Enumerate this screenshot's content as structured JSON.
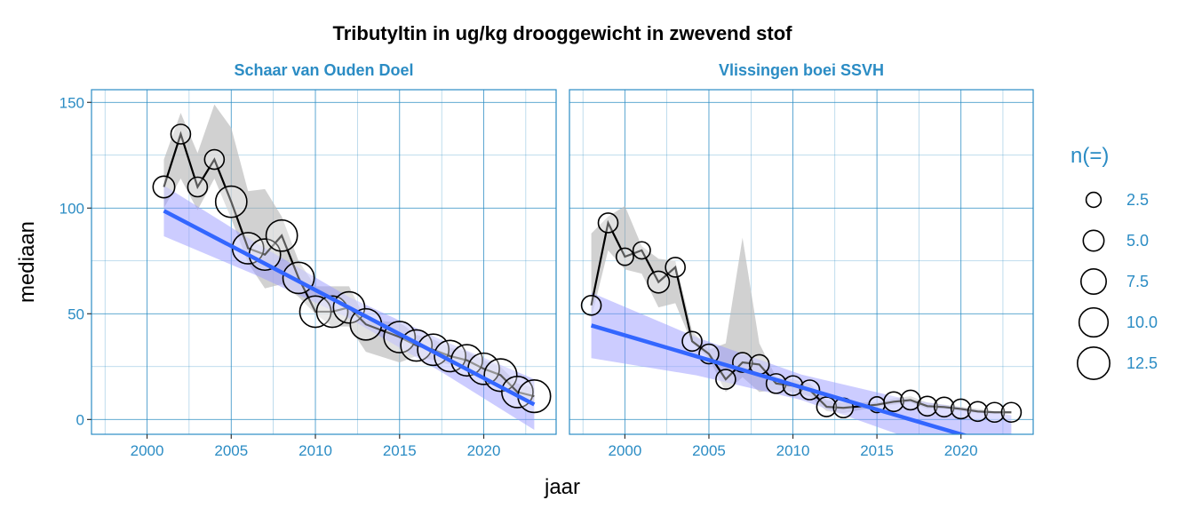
{
  "colors": {
    "title": "#b32d5e",
    "text": "#2b8cc4",
    "grid": "#2b8cc4",
    "trend": "#3366ff",
    "trend_ribbon": "#c8c8ff",
    "data_ribbon": "#bdbdbd"
  },
  "chart_data": {
    "type": "line",
    "title": "Tributyltin in ug/kg drooggewicht in zwevend stof",
    "xlabel": "jaar",
    "ylabel": "mediaan",
    "xlim": [
      1996.7,
      2024.3
    ],
    "ylim": [
      -7,
      156
    ],
    "xticks": [
      2000,
      2005,
      2010,
      2015,
      2020
    ],
    "yticks": [
      0,
      50,
      100,
      150
    ],
    "grid": true,
    "legend": {
      "title": "n(=)",
      "position": "right",
      "sizes": [
        2.5,
        5.0,
        7.5,
        10.0,
        12.5
      ],
      "labels": [
        "2.5",
        "5.0",
        "7.5",
        "10.0",
        "12.5"
      ]
    },
    "panels": [
      {
        "name": "Schaar van Ouden Doel",
        "x": [
          2001,
          2002,
          2003,
          2004,
          2005,
          2006,
          2007,
          2008,
          2009,
          2010,
          2011,
          2012,
          2013,
          2015,
          2016,
          2017,
          2018,
          2019,
          2020,
          2021,
          2022,
          2023
        ],
        "y": [
          110,
          135,
          110,
          123,
          103,
          81,
          78,
          87,
          67,
          51,
          51,
          53,
          45,
          39,
          35,
          33,
          30,
          28,
          24,
          21,
          13,
          11
        ],
        "n": [
          5,
          4,
          4,
          4,
          11,
          11,
          11,
          11,
          11,
          11,
          11,
          11,
          11,
          11,
          11,
          11,
          11,
          11,
          11,
          12,
          11,
          12
        ],
        "ribbon_lower": [
          100,
          114,
          99,
          114,
          95,
          74,
          62,
          64,
          58,
          50,
          44,
          44,
          32,
          27,
          30,
          28,
          26,
          24,
          20,
          17,
          10,
          7
        ],
        "ribbon_upper": [
          123,
          145,
          126,
          149,
          138,
          108,
          109,
          96,
          75,
          63,
          63,
          63,
          47,
          46,
          40,
          38,
          34,
          32,
          28,
          25,
          17,
          15
        ],
        "trend": {
          "x": [
            2001,
            2006.5,
            2012,
            2017.5,
            2023
          ],
          "y": [
            98.7,
            75.8,
            52.9,
            30.0,
            7.1
          ],
          "lower": [
            86.7,
            68.2,
            47.9,
            22.4,
            -4.9
          ],
          "upper": [
            110.7,
            83.4,
            57.9,
            37.6,
            19.1
          ]
        }
      },
      {
        "name": "Vlissingen boei SSVH",
        "x": [
          1998,
          1999,
          2000,
          2001,
          2002,
          2003,
          2004,
          2005,
          2006,
          2007,
          2008,
          2009,
          2010,
          2011,
          2012,
          2013,
          2015,
          2016,
          2017,
          2018,
          2019,
          2020,
          2021,
          2022,
          2023
        ],
        "y": [
          54,
          93,
          77,
          80,
          65,
          72,
          37,
          31,
          19,
          27,
          26,
          17,
          16,
          14,
          6,
          5.5,
          7,
          8.4,
          9.2,
          6.3,
          5.9,
          5,
          3.8,
          3.4,
          3.4
        ],
        "n": [
          4,
          4,
          3,
          3,
          5,
          4,
          4,
          4,
          4,
          4,
          4,
          4,
          4,
          4,
          4,
          4,
          2.5,
          4,
          4,
          4,
          4,
          4,
          4,
          4,
          4
        ],
        "ribbon_lower": [
          48,
          80,
          71,
          69,
          53,
          55,
          36,
          29,
          13,
          20,
          13,
          14,
          13,
          11,
          4,
          3,
          6,
          7,
          8,
          5,
          5,
          4,
          3,
          3,
          3
        ],
        "ribbon_upper": [
          88,
          96,
          101,
          82,
          76,
          75,
          42,
          33,
          36,
          86,
          36,
          20,
          19,
          17,
          9,
          8,
          8,
          10,
          11,
          8,
          7,
          6,
          5,
          4,
          4
        ],
        "trend": {
          "x": [
            1998,
            2004.25,
            2010.5,
            2016.75,
            2023
          ],
          "y": [
            44.5,
            29.9,
            15.25,
            0.6,
            -14
          ],
          "lower": [
            29,
            20.9,
            9.25,
            -8.4,
            -30
          ],
          "upper": [
            60,
            38.9,
            21.25,
            9.6,
            2
          ]
        }
      }
    ]
  }
}
